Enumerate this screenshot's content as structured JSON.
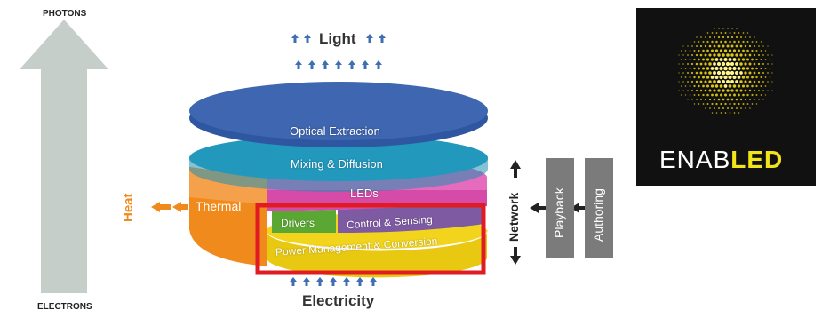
{
  "left_axis": {
    "top_label": "PHOTONS",
    "bottom_label": "ELECTRONS"
  },
  "stack": {
    "top_label": "Light",
    "bottom_label": "Electricity",
    "layers": {
      "optical": "Optical Extraction",
      "mixing": "Mixing & Diffusion",
      "leds": "LEDs",
      "thermal": "Thermal",
      "drivers": "Drivers",
      "control": "Control & Sensing",
      "power": "Power Management & Conversion"
    },
    "heat_label": "Heat",
    "network_label": "Network"
  },
  "side_boxes": {
    "playback": "Playback",
    "authoring": "Authoring"
  },
  "logo": {
    "prefix": "ENAB",
    "highlight": "LED"
  },
  "colors": {
    "axis_arrow": "#c5cec8",
    "optical": "#3f66b0",
    "mixing": "#27a3c8",
    "leds": "#d64aa8",
    "thermal": "#f18a1d",
    "drivers": "#5aa833",
    "control": "#7e5aa3",
    "power": "#f2d41c",
    "highlight_box": "#e11b22",
    "side_box": "#7b7b7b",
    "logo_bg": "#111111",
    "logo_accent": "#f2e31a"
  }
}
